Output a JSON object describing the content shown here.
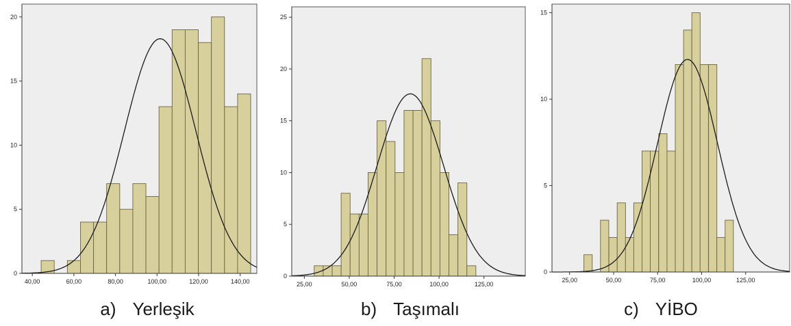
{
  "colors": {
    "bar_fill": "#d7cf9c",
    "bar_stroke": "#6b6440",
    "plot_bg": "#efeeee",
    "curve": "#1a1a1a"
  },
  "panels": [
    {
      "caption_letter": "a)",
      "caption_name": "Yerleşik"
    },
    {
      "caption_letter": "b)",
      "caption_name": "Taşımalı",
      "top_text": ""
    },
    {
      "caption_letter": "c)",
      "caption_name": "YİBO"
    }
  ],
  "chart_data": [
    {
      "type": "bar",
      "title": "",
      "xlabel": "",
      "ylabel": "",
      "xlim": [
        35,
        148
      ],
      "ylim": [
        0,
        21
      ],
      "x_ticks": [
        40,
        60,
        80,
        100,
        120,
        140
      ],
      "x_tick_labels": [
        "40,00",
        "60,00",
        "80,00",
        "100,00",
        "120,00",
        "140,00"
      ],
      "y_ticks": [
        0,
        5,
        10,
        15,
        20
      ],
      "y_tick_labels": [
        "0",
        "5",
        "10",
        "15",
        "20"
      ],
      "bin_width": 6.3,
      "bins": [
        {
          "x": 47.4,
          "count": 1
        },
        {
          "x": 53.7,
          "count": 0
        },
        {
          "x": 60.0,
          "count": 1
        },
        {
          "x": 66.3,
          "count": 4
        },
        {
          "x": 72.6,
          "count": 4
        },
        {
          "x": 78.9,
          "count": 7
        },
        {
          "x": 85.2,
          "count": 5
        },
        {
          "x": 91.5,
          "count": 7
        },
        {
          "x": 97.8,
          "count": 6
        },
        {
          "x": 104.1,
          "count": 13
        },
        {
          "x": 110.4,
          "count": 19
        },
        {
          "x": 116.7,
          "count": 19
        },
        {
          "x": 123.0,
          "count": 18
        },
        {
          "x": 129.3,
          "count": 20
        },
        {
          "x": 135.6,
          "count": 13
        },
        {
          "x": 141.9,
          "count": 14
        }
      ],
      "normal_curve": {
        "mean": 101.5,
        "sd": 17.2,
        "peak": 18.3
      }
    },
    {
      "type": "bar",
      "title": "",
      "xlabel": "",
      "ylabel": "",
      "xlim": [
        18,
        148
      ],
      "ylim": [
        0,
        26
      ],
      "x_ticks": [
        25,
        50,
        75,
        100,
        125
      ],
      "x_tick_labels": [
        "25,00",
        "50,00",
        "75,00",
        "100,00",
        "125,00"
      ],
      "y_ticks": [
        0,
        5,
        10,
        15,
        20,
        25
      ],
      "y_tick_labels": [
        "0",
        "5",
        "10",
        "15",
        "20",
        "25"
      ],
      "bin_width": 5.0,
      "bins": [
        {
          "x": 33,
          "count": 1
        },
        {
          "x": 38,
          "count": 1
        },
        {
          "x": 43,
          "count": 1
        },
        {
          "x": 48,
          "count": 8
        },
        {
          "x": 53,
          "count": 6
        },
        {
          "x": 58,
          "count": 6
        },
        {
          "x": 63,
          "count": 10
        },
        {
          "x": 68,
          "count": 15
        },
        {
          "x": 73,
          "count": 13
        },
        {
          "x": 78,
          "count": 10
        },
        {
          "x": 83,
          "count": 16
        },
        {
          "x": 88,
          "count": 16
        },
        {
          "x": 93,
          "count": 21
        },
        {
          "x": 98,
          "count": 15
        },
        {
          "x": 103,
          "count": 10
        },
        {
          "x": 108,
          "count": 4
        },
        {
          "x": 113,
          "count": 9
        },
        {
          "x": 118,
          "count": 1
        }
      ],
      "normal_curve": {
        "mean": 84,
        "sd": 18.5,
        "peak": 17.6
      }
    },
    {
      "type": "bar",
      "title": "",
      "xlabel": "",
      "ylabel": "",
      "xlim": [
        15,
        150
      ],
      "ylim": [
        0,
        15.5
      ],
      "x_ticks": [
        25,
        50,
        75,
        100,
        125
      ],
      "x_tick_labels": [
        "25,00",
        "50,00",
        "75,00",
        "100,00",
        "125,00"
      ],
      "y_ticks": [
        0,
        5,
        10,
        15
      ],
      "y_tick_labels": [
        "0",
        "5",
        "10",
        "15"
      ],
      "bin_width": 4.72,
      "bins": [
        {
          "x": 35.5,
          "count": 1
        },
        {
          "x": 40.2,
          "count": 0
        },
        {
          "x": 44.9,
          "count": 3
        },
        {
          "x": 49.7,
          "count": 2
        },
        {
          "x": 54.4,
          "count": 4
        },
        {
          "x": 59.1,
          "count": 2
        },
        {
          "x": 63.8,
          "count": 4
        },
        {
          "x": 68.5,
          "count": 7
        },
        {
          "x": 73.2,
          "count": 7
        },
        {
          "x": 78.0,
          "count": 8
        },
        {
          "x": 82.7,
          "count": 7
        },
        {
          "x": 87.4,
          "count": 12
        },
        {
          "x": 92.1,
          "count": 14
        },
        {
          "x": 96.8,
          "count": 15
        },
        {
          "x": 101.5,
          "count": 12
        },
        {
          "x": 106.3,
          "count": 12
        },
        {
          "x": 111.0,
          "count": 2
        },
        {
          "x": 115.7,
          "count": 3
        }
      ],
      "normal_curve": {
        "mean": 92,
        "sd": 17,
        "peak": 12.3
      }
    }
  ]
}
